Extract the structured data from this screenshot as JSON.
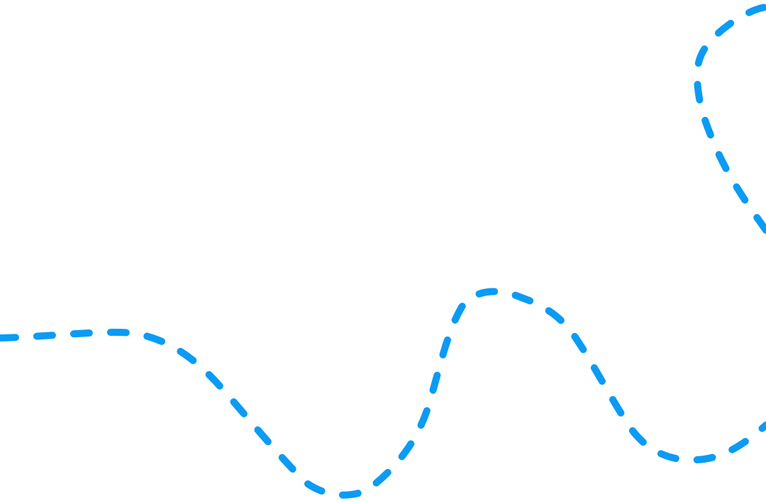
{
  "canvas": {
    "background_color": "#ffffff"
  },
  "curves": [
    {
      "name": "lower-dashed-curve",
      "stroke_color": "#0a9bf5",
      "style": "dashed"
    },
    {
      "name": "upper-dashed-curve",
      "stroke_color": "#0a9bf5",
      "style": "dashed"
    }
  ]
}
